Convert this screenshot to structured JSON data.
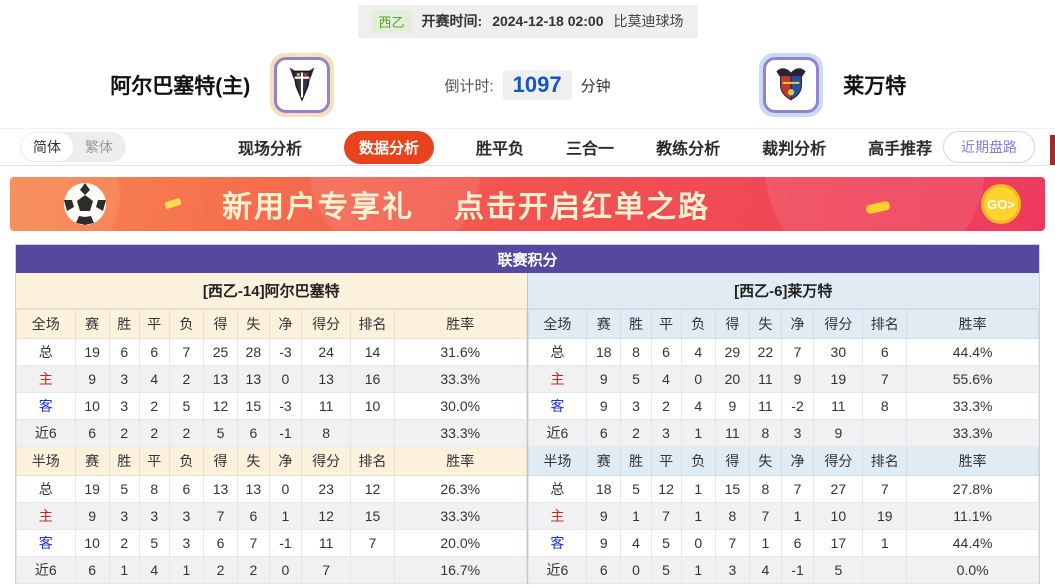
{
  "match_info": {
    "league_badge": "西乙",
    "kickoff_label": "开赛时间:",
    "kickoff_time": "2024-12-18 02:00",
    "venue": "比莫迪球场"
  },
  "teams": {
    "home_name": "阿尔巴塞特(主)",
    "away_name": "莱万特",
    "countdown_label": "倒计时:",
    "countdown_value": "1097",
    "countdown_unit": "分钟"
  },
  "nav": {
    "lang_simplified": "简体",
    "lang_traditional": "繁体",
    "items": [
      "现场分析",
      "数据分析",
      "胜平负",
      "三合一",
      "教练分析",
      "裁判分析",
      "高手推荐"
    ],
    "active_item": "数据分析",
    "recent_trends": "近期盘路"
  },
  "banner": {
    "text1": "新用户专享礼",
    "text2": "点击开启红单之路",
    "go_label": "GO>"
  },
  "colors": {
    "nav_active": "#e8431c",
    "table_title": "#55499e",
    "home_panel": "#fbf1dd",
    "away_panel": "#e0ebf4",
    "countdown_blue": "#1455cc",
    "badge_green": "#55a02e"
  },
  "league_table": {
    "title": "联赛积分",
    "columns_full": [
      "全场",
      "赛",
      "胜",
      "平",
      "负",
      "得",
      "失",
      "净",
      "得分",
      "排名",
      "胜率"
    ],
    "columns_half": [
      "半场",
      "赛",
      "胜",
      "平",
      "负",
      "得",
      "失",
      "净",
      "得分",
      "排名",
      "胜率"
    ],
    "home": {
      "subtitle": "[西乙-14]阿尔巴塞特",
      "full": {
        "rows": [
          {
            "label": "总",
            "cells": [
              "19",
              "6",
              "6",
              "7",
              "25",
              "28",
              "-3",
              "24",
              "14",
              "31.6%"
            ]
          },
          {
            "label": "主",
            "cells": [
              "9",
              "3",
              "4",
              "2",
              "13",
              "13",
              "0",
              "13",
              "16",
              "33.3%"
            ]
          },
          {
            "label": "客",
            "cells": [
              "10",
              "3",
              "2",
              "5",
              "12",
              "15",
              "-3",
              "11",
              "10",
              "30.0%"
            ]
          },
          {
            "label": "近6",
            "cells": [
              "6",
              "2",
              "2",
              "2",
              "5",
              "6",
              "-1",
              "8",
              "",
              "33.3%"
            ]
          }
        ]
      },
      "half": {
        "rows": [
          {
            "label": "总",
            "cells": [
              "19",
              "5",
              "8",
              "6",
              "13",
              "13",
              "0",
              "23",
              "12",
              "26.3%"
            ]
          },
          {
            "label": "主",
            "cells": [
              "9",
              "3",
              "3",
              "3",
              "7",
              "6",
              "1",
              "12",
              "15",
              "33.3%"
            ]
          },
          {
            "label": "客",
            "cells": [
              "10",
              "2",
              "5",
              "3",
              "6",
              "7",
              "-1",
              "11",
              "7",
              "20.0%"
            ]
          },
          {
            "label": "近6",
            "cells": [
              "6",
              "1",
              "4",
              "1",
              "2",
              "2",
              "0",
              "7",
              "",
              "16.7%"
            ]
          }
        ]
      }
    },
    "away": {
      "subtitle": "[西乙-6]莱万特",
      "full": {
        "rows": [
          {
            "label": "总",
            "cells": [
              "18",
              "8",
              "6",
              "4",
              "29",
              "22",
              "7",
              "30",
              "6",
              "44.4%"
            ]
          },
          {
            "label": "主",
            "cells": [
              "9",
              "5",
              "4",
              "0",
              "20",
              "11",
              "9",
              "19",
              "7",
              "55.6%"
            ]
          },
          {
            "label": "客",
            "cells": [
              "9",
              "3",
              "2",
              "4",
              "9",
              "11",
              "-2",
              "11",
              "8",
              "33.3%"
            ]
          },
          {
            "label": "近6",
            "cells": [
              "6",
              "2",
              "3",
              "1",
              "11",
              "8",
              "3",
              "9",
              "",
              "33.3%"
            ]
          }
        ]
      },
      "half": {
        "rows": [
          {
            "label": "总",
            "cells": [
              "18",
              "5",
              "12",
              "1",
              "15",
              "8",
              "7",
              "27",
              "7",
              "27.8%"
            ]
          },
          {
            "label": "主",
            "cells": [
              "9",
              "1",
              "7",
              "1",
              "8",
              "7",
              "1",
              "10",
              "19",
              "11.1%"
            ]
          },
          {
            "label": "客",
            "cells": [
              "9",
              "4",
              "5",
              "0",
              "7",
              "1",
              "6",
              "17",
              "1",
              "44.4%"
            ]
          },
          {
            "label": "近6",
            "cells": [
              "6",
              "0",
              "5",
              "1",
              "3",
              "4",
              "-1",
              "5",
              "",
              "0.0%"
            ]
          }
        ]
      }
    }
  }
}
